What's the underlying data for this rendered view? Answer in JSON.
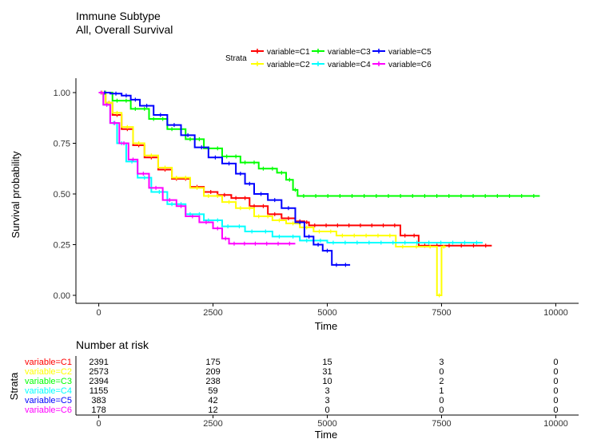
{
  "chart_data": {
    "type": "line",
    "subtype": "kaplan-meier",
    "title": "Immune Subtype",
    "subtitle": "All, Overall Survival",
    "xlabel": "Time",
    "ylabel": "Survival probability",
    "xlim": [
      -500,
      10500
    ],
    "ylim": [
      0,
      1
    ],
    "x_ticks": [
      0,
      2500,
      5000,
      7500,
      10000
    ],
    "y_ticks": [
      0.0,
      0.25,
      0.5,
      0.75,
      1.0
    ],
    "y_tick_labels": [
      "0.00",
      "0.25",
      "0.50",
      "0.75",
      "1.00"
    ],
    "grid": false,
    "legend": {
      "title": "Strata",
      "placement": "top",
      "entries": [
        "variable=C1",
        "variable=C2",
        "variable=C3",
        "variable=C4",
        "variable=C5",
        "variable=C6"
      ]
    },
    "series": [
      {
        "name": "variable=C1",
        "color": "#ff0000",
        "points": [
          [
            0,
            1.0
          ],
          [
            150,
            0.95
          ],
          [
            300,
            0.89
          ],
          [
            500,
            0.82
          ],
          [
            750,
            0.74
          ],
          [
            1000,
            0.68
          ],
          [
            1300,
            0.62
          ],
          [
            1600,
            0.575
          ],
          [
            2000,
            0.535
          ],
          [
            2300,
            0.51
          ],
          [
            2600,
            0.495
          ],
          [
            2900,
            0.48
          ],
          [
            3300,
            0.44
          ],
          [
            3700,
            0.4
          ],
          [
            4000,
            0.38
          ],
          [
            4300,
            0.365
          ],
          [
            4500,
            0.36
          ],
          [
            4600,
            0.345
          ],
          [
            6600,
            0.345
          ],
          [
            6600,
            0.295
          ],
          [
            7000,
            0.295
          ],
          [
            7000,
            0.245
          ],
          [
            8600,
            0.245
          ]
        ]
      },
      {
        "name": "variable=C2",
        "color": "#ffff00",
        "points": [
          [
            0,
            1.0
          ],
          [
            150,
            0.95
          ],
          [
            300,
            0.9
          ],
          [
            500,
            0.83
          ],
          [
            750,
            0.75
          ],
          [
            1000,
            0.69
          ],
          [
            1300,
            0.63
          ],
          [
            1600,
            0.58
          ],
          [
            2000,
            0.53
          ],
          [
            2300,
            0.49
          ],
          [
            2700,
            0.46
          ],
          [
            3000,
            0.43
          ],
          [
            3400,
            0.39
          ],
          [
            3800,
            0.37
          ],
          [
            4100,
            0.355
          ],
          [
            4400,
            0.335
          ],
          [
            4700,
            0.315
          ],
          [
            5200,
            0.295
          ],
          [
            6500,
            0.295
          ],
          [
            6500,
            0.24
          ],
          [
            7400,
            0.24
          ],
          [
            7400,
            0.0
          ],
          [
            7500,
            0.0
          ],
          [
            7500,
            0.24
          ],
          [
            7600,
            0.24
          ]
        ]
      },
      {
        "name": "variable=C3",
        "color": "#00ff00",
        "points": [
          [
            0,
            1.0
          ],
          [
            300,
            0.96
          ],
          [
            700,
            0.92
          ],
          [
            1100,
            0.87
          ],
          [
            1500,
            0.82
          ],
          [
            1900,
            0.77
          ],
          [
            2300,
            0.725
          ],
          [
            2700,
            0.685
          ],
          [
            3100,
            0.655
          ],
          [
            3500,
            0.625
          ],
          [
            3900,
            0.605
          ],
          [
            4100,
            0.57
          ],
          [
            4250,
            0.52
          ],
          [
            4350,
            0.49
          ],
          [
            9650,
            0.49
          ]
        ]
      },
      {
        "name": "variable=C4",
        "color": "#00ffff",
        "points": [
          [
            0,
            1.0
          ],
          [
            100,
            0.94
          ],
          [
            250,
            0.85
          ],
          [
            400,
            0.75
          ],
          [
            600,
            0.66
          ],
          [
            850,
            0.58
          ],
          [
            1150,
            0.51
          ],
          [
            1500,
            0.45
          ],
          [
            1900,
            0.4
          ],
          [
            2300,
            0.37
          ],
          [
            2700,
            0.34
          ],
          [
            3200,
            0.315
          ],
          [
            3800,
            0.29
          ],
          [
            4400,
            0.27
          ],
          [
            5000,
            0.26
          ],
          [
            8400,
            0.26
          ]
        ]
      },
      {
        "name": "variable=C5",
        "color": "#0000ff",
        "points": [
          [
            0,
            1.0
          ],
          [
            250,
            0.995
          ],
          [
            500,
            0.985
          ],
          [
            700,
            0.965
          ],
          [
            900,
            0.935
          ],
          [
            1200,
            0.89
          ],
          [
            1500,
            0.84
          ],
          [
            1800,
            0.79
          ],
          [
            2100,
            0.73
          ],
          [
            2400,
            0.68
          ],
          [
            2700,
            0.65
          ],
          [
            3000,
            0.6
          ],
          [
            3200,
            0.55
          ],
          [
            3400,
            0.5
          ],
          [
            3700,
            0.47
          ],
          [
            4000,
            0.43
          ],
          [
            4300,
            0.36
          ],
          [
            4500,
            0.29
          ],
          [
            4700,
            0.25
          ],
          [
            4900,
            0.22
          ],
          [
            5100,
            0.15
          ],
          [
            5500,
            0.15
          ]
        ]
      },
      {
        "name": "variable=C6",
        "color": "#ff00ff",
        "points": [
          [
            0,
            1.0
          ],
          [
            100,
            0.94
          ],
          [
            250,
            0.85
          ],
          [
            450,
            0.75
          ],
          [
            650,
            0.67
          ],
          [
            850,
            0.6
          ],
          [
            1100,
            0.53
          ],
          [
            1400,
            0.47
          ],
          [
            1700,
            0.44
          ],
          [
            1900,
            0.39
          ],
          [
            2200,
            0.36
          ],
          [
            2500,
            0.33
          ],
          [
            2700,
            0.28
          ],
          [
            2850,
            0.255
          ],
          [
            3300,
            0.255
          ],
          [
            4300,
            0.255
          ]
        ]
      }
    ],
    "risk_table": {
      "title": "Number at risk",
      "ylabel": "Strata",
      "xlabel": "Time",
      "times": [
        0,
        2500,
        5000,
        7500,
        10000
      ],
      "rows": [
        {
          "label": "variable=C1",
          "color": "#ff0000",
          "values": [
            "2391",
            "175",
            "15",
            "3",
            "0"
          ]
        },
        {
          "label": "variable=C2",
          "color": "#ffff00",
          "values": [
            "2573",
            "209",
            "31",
            "0",
            "0"
          ]
        },
        {
          "label": "variable=C3",
          "color": "#00ff00",
          "values": [
            "2394",
            "238",
            "10",
            "2",
            "0"
          ]
        },
        {
          "label": "variable=C4",
          "color": "#00ffff",
          "values": [
            "1155",
            "59",
            "3",
            "1",
            "0"
          ]
        },
        {
          "label": "variable=C5",
          "color": "#0000ff",
          "values": [
            "383",
            "42",
            "3",
            "0",
            "0"
          ]
        },
        {
          "label": "variable=C6",
          "color": "#ff00ff",
          "values": [
            "178",
            "12",
            "0",
            "0",
            "0"
          ]
        }
      ]
    }
  }
}
